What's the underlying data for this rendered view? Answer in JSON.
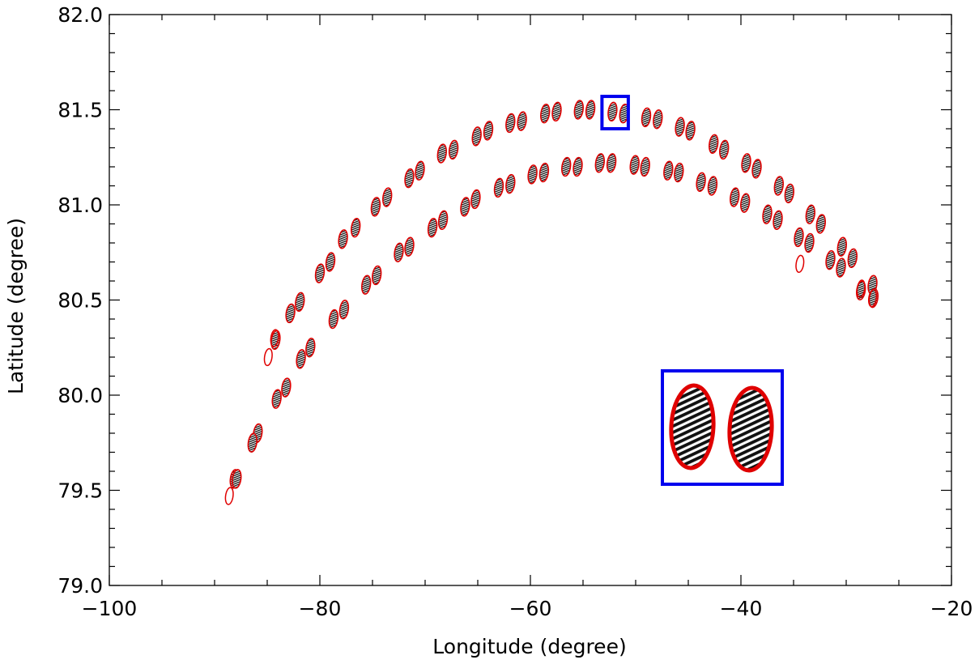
{
  "chart_data": {
    "type": "scatter",
    "title": "",
    "xlabel": "Longitude (degree)",
    "ylabel": "Latitude (degree)",
    "xlim": [
      -100,
      -20
    ],
    "ylim": [
      79.0,
      82.0
    ],
    "x_ticks": [
      -100,
      -80,
      -60,
      -40,
      -20
    ],
    "x_tick_labels": [
      "−100",
      "−80",
      "−60",
      "−40",
      "−20"
    ],
    "y_ticks": [
      79.0,
      79.5,
      80.0,
      80.5,
      81.0,
      81.5,
      82.0
    ],
    "y_tick_labels": [
      "79.0",
      "79.5",
      "80.0",
      "80.5",
      "81.0",
      "81.5",
      "82.0"
    ],
    "grid": false,
    "marker": "hatched ellipse footprint with red outline",
    "colors": {
      "outline": "#e00000",
      "fill": "#111111",
      "highlight_box": "#0000ee"
    },
    "series": [
      {
        "values": [
          {
            "x": -88.1,
            "y": 79.56
          },
          {
            "x": -85.9,
            "y": 79.8
          },
          {
            "x": -84.2,
            "y": 80.29
          },
          {
            "x": -82.8,
            "y": 80.43
          },
          {
            "x": -81.9,
            "y": 80.49
          },
          {
            "x": -80.0,
            "y": 80.64
          },
          {
            "x": -79.0,
            "y": 80.7
          },
          {
            "x": -77.8,
            "y": 80.82
          },
          {
            "x": -76.6,
            "y": 80.88
          },
          {
            "x": -74.7,
            "y": 80.99
          },
          {
            "x": -73.6,
            "y": 81.04
          },
          {
            "x": -71.5,
            "y": 81.14
          },
          {
            "x": -70.5,
            "y": 81.18
          },
          {
            "x": -68.4,
            "y": 81.27
          },
          {
            "x": -67.3,
            "y": 81.29
          },
          {
            "x": -65.1,
            "y": 81.36
          },
          {
            "x": -64.0,
            "y": 81.39
          },
          {
            "x": -61.9,
            "y": 81.43
          },
          {
            "x": -60.8,
            "y": 81.44
          },
          {
            "x": -58.6,
            "y": 81.48
          },
          {
            "x": -57.5,
            "y": 81.49
          },
          {
            "x": -55.4,
            "y": 81.5
          },
          {
            "x": -54.3,
            "y": 81.5
          },
          {
            "x": -52.2,
            "y": 81.49
          },
          {
            "x": -51.1,
            "y": 81.48
          },
          {
            "x": -49.0,
            "y": 81.46
          },
          {
            "x": -47.9,
            "y": 81.45
          },
          {
            "x": -45.8,
            "y": 81.41
          },
          {
            "x": -44.8,
            "y": 81.39
          },
          {
            "x": -42.6,
            "y": 81.32
          },
          {
            "x": -41.6,
            "y": 81.29
          },
          {
            "x": -39.5,
            "y": 81.22
          },
          {
            "x": -38.5,
            "y": 81.19
          },
          {
            "x": -36.4,
            "y": 81.1
          },
          {
            "x": -35.4,
            "y": 81.06
          },
          {
            "x": -33.4,
            "y": 80.95
          },
          {
            "x": -32.4,
            "y": 80.9
          },
          {
            "x": -30.4,
            "y": 80.78
          },
          {
            "x": -29.4,
            "y": 80.72
          },
          {
            "x": -27.5,
            "y": 80.58
          }
        ]
      },
      {
        "values": [
          {
            "x": -87.9,
            "y": 79.56
          },
          {
            "x": -86.4,
            "y": 79.75
          },
          {
            "x": -84.1,
            "y": 79.98
          },
          {
            "x": -83.2,
            "y": 80.04
          },
          {
            "x": -81.8,
            "y": 80.19
          },
          {
            "x": -80.9,
            "y": 80.25
          },
          {
            "x": -78.7,
            "y": 80.4
          },
          {
            "x": -77.7,
            "y": 80.45
          },
          {
            "x": -75.6,
            "y": 80.58
          },
          {
            "x": -74.6,
            "y": 80.63
          },
          {
            "x": -72.5,
            "y": 80.75
          },
          {
            "x": -71.5,
            "y": 80.78
          },
          {
            "x": -69.3,
            "y": 80.88
          },
          {
            "x": -68.3,
            "y": 80.92
          },
          {
            "x": -66.2,
            "y": 80.99
          },
          {
            "x": -65.2,
            "y": 81.03
          },
          {
            "x": -63.0,
            "y": 81.09
          },
          {
            "x": -61.9,
            "y": 81.11
          },
          {
            "x": -59.8,
            "y": 81.16
          },
          {
            "x": -58.7,
            "y": 81.17
          },
          {
            "x": -56.6,
            "y": 81.2
          },
          {
            "x": -55.5,
            "y": 81.2
          },
          {
            "x": -53.4,
            "y": 81.22
          },
          {
            "x": -52.3,
            "y": 81.22
          },
          {
            "x": -50.1,
            "y": 81.21
          },
          {
            "x": -49.1,
            "y": 81.2
          },
          {
            "x": -46.9,
            "y": 81.18
          },
          {
            "x": -45.9,
            "y": 81.17
          },
          {
            "x": -43.8,
            "y": 81.12
          },
          {
            "x": -42.7,
            "y": 81.1
          },
          {
            "x": -40.6,
            "y": 81.04
          },
          {
            "x": -39.6,
            "y": 81.01
          },
          {
            "x": -37.5,
            "y": 80.95
          },
          {
            "x": -36.5,
            "y": 80.92
          },
          {
            "x": -34.5,
            "y": 80.83
          },
          {
            "x": -33.5,
            "y": 80.8
          },
          {
            "x": -31.5,
            "y": 80.71
          },
          {
            "x": -30.5,
            "y": 80.67
          },
          {
            "x": -28.6,
            "y": 80.55
          },
          {
            "x": -27.4,
            "y": 80.51
          }
        ]
      }
    ],
    "outline_only_points": [
      {
        "x": -88.6,
        "y": 79.47
      },
      {
        "x": -84.9,
        "y": 80.2
      },
      {
        "x": -84.3,
        "y": 80.3
      },
      {
        "x": -34.4,
        "y": 80.69
      },
      {
        "x": -28.6,
        "y": 80.56
      },
      {
        "x": -27.5,
        "y": 80.51
      }
    ],
    "highlight": {
      "xrange": [
        -53.2,
        -50.7
      ],
      "yrange": [
        81.4,
        81.57
      ],
      "zoom_inset_position": "lower-right"
    }
  }
}
